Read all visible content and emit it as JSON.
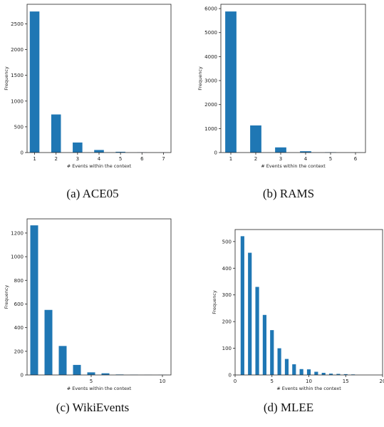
{
  "chart_data": [
    {
      "type": "bar",
      "caption": "(a)  ACE05",
      "xlabel": "# Events within the context",
      "ylabel": "Frequency",
      "x": [
        1,
        2,
        3,
        4,
        5,
        6,
        7
      ],
      "values": [
        2740,
        740,
        195,
        50,
        15,
        3,
        1
      ],
      "xlim": [
        0.65,
        7.35
      ],
      "ylim": [
        0,
        2880
      ],
      "xticks": [
        1,
        2,
        3,
        4,
        5,
        6,
        7
      ],
      "yticks": [
        0,
        500,
        1000,
        1500,
        2000,
        2500
      ],
      "bar_width": 0.45,
      "color": "#1f77b4"
    },
    {
      "type": "bar",
      "caption": "(b)  RAMS",
      "xlabel": "# Events within the context",
      "ylabel": "Frequency",
      "x": [
        1,
        2,
        3,
        4,
        5,
        6
      ],
      "values": [
        5880,
        1130,
        215,
        55,
        15,
        2
      ],
      "xlim": [
        0.6,
        6.4
      ],
      "ylim": [
        0,
        6180
      ],
      "xticks": [
        1,
        2,
        3,
        4,
        5,
        6
      ],
      "yticks": [
        0,
        1000,
        2000,
        3000,
        4000,
        5000,
        6000
      ],
      "bar_width": 0.45,
      "color": "#1f77b4"
    },
    {
      "type": "bar",
      "caption": "(c)  WikiEvents",
      "xlabel": "# Events within the context",
      "ylabel": "Frequency",
      "x": [
        1,
        2,
        3,
        4,
        5,
        6,
        7,
        8,
        9,
        10
      ],
      "values": [
        1265,
        550,
        245,
        85,
        22,
        14,
        4,
        2,
        1,
        1
      ],
      "xlim": [
        0.5,
        10.6
      ],
      "ylim": [
        0,
        1320
      ],
      "xticks": [
        5,
        10
      ],
      "yticks": [
        0,
        200,
        400,
        600,
        800,
        1000,
        1200
      ],
      "bar_width": 0.55,
      "color": "#1f77b4"
    },
    {
      "type": "bar",
      "caption": "(d)  MLEE",
      "xlabel": "# Events within the context",
      "ylabel": "Frequency",
      "x": [
        1,
        2,
        3,
        4,
        5,
        6,
        7,
        8,
        9,
        10,
        11,
        12,
        13,
        14,
        15,
        16
      ],
      "values": [
        520,
        458,
        330,
        225,
        168,
        100,
        60,
        40,
        22,
        21,
        12,
        8,
        5,
        4,
        3,
        2
      ],
      "xlim": [
        0,
        20
      ],
      "ylim": [
        0,
        545
      ],
      "xticks": [
        0,
        5,
        10,
        15,
        20
      ],
      "ytick_labels_override": {
        "20": "20"
      },
      "yticks": [
        0,
        100,
        200,
        300,
        400,
        500
      ],
      "bar_width": 0.5,
      "color": "#1f77b4"
    }
  ]
}
